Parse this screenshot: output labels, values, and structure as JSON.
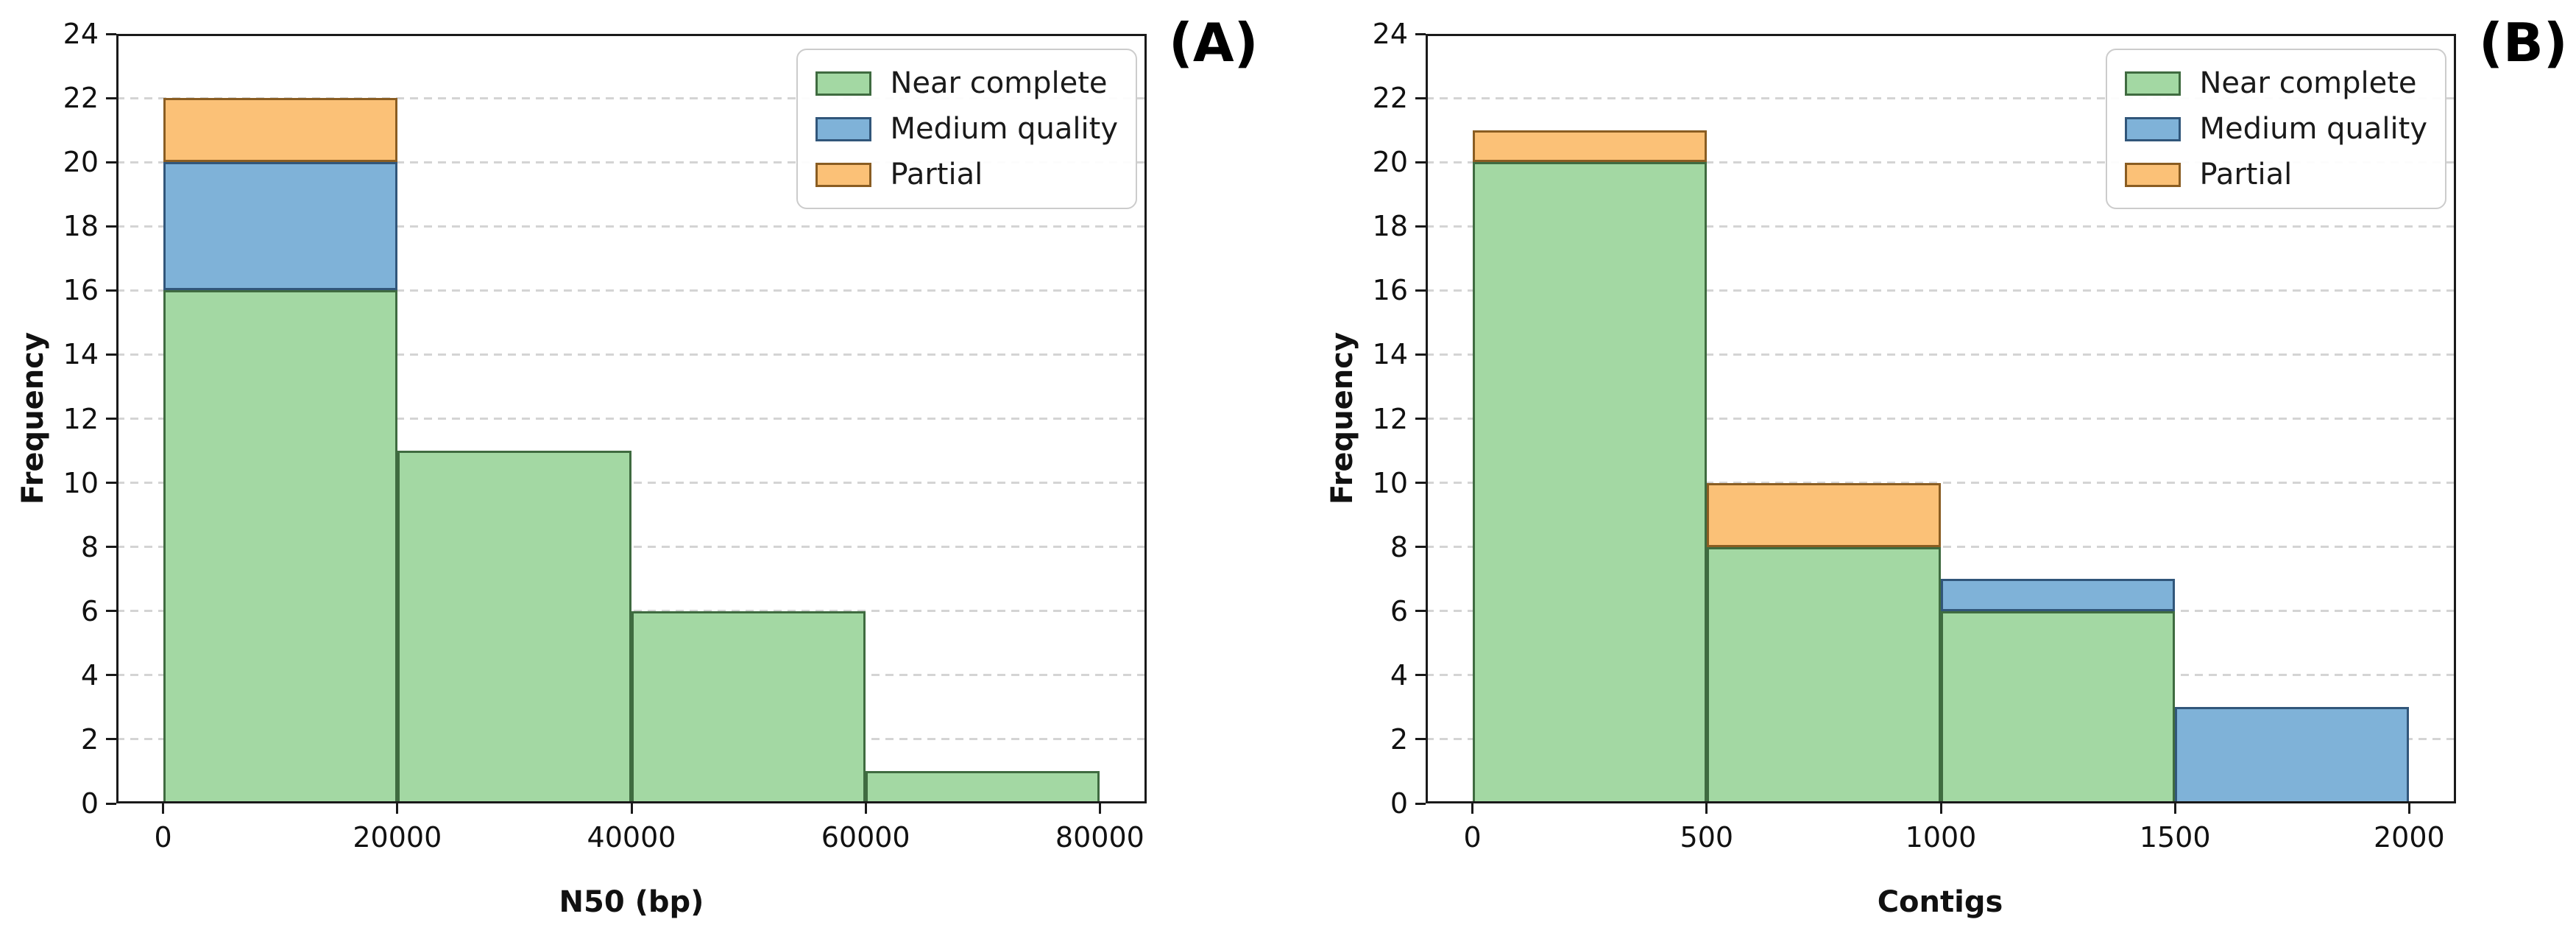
{
  "figure": {
    "background": "#ffffff"
  },
  "palette": {
    "series_fills": [
      "#a3d8a3",
      "#7fb2d8",
      "#fbc177"
    ],
    "series_edges": [
      "#3f6b40",
      "#31567a",
      "#8a5d22"
    ],
    "axis_color": "#1a1a1a",
    "grid_color": "#d4d4d4",
    "legend_border": "#cccccc"
  },
  "chart_data": [
    {
      "panel_label": "(A)",
      "type": "bar",
      "subtype": "stacked-histogram",
      "xlabel": "N50 (bp)",
      "ylabel": "Frequency",
      "bin_edges": [
        0,
        20000,
        40000,
        60000,
        80000
      ],
      "x_ticks": [
        0,
        20000,
        40000,
        60000,
        80000
      ],
      "y_ticks": [
        0,
        2,
        4,
        6,
        8,
        10,
        12,
        14,
        16,
        18,
        20,
        22,
        24
      ],
      "xlim": [
        -4000,
        84000
      ],
      "ylim": [
        0,
        24
      ],
      "grid": "horizontal-dashed",
      "legend_position": "upper-right",
      "series": [
        {
          "name": "Near complete",
          "values": [
            16,
            11,
            6,
            1
          ]
        },
        {
          "name": "Medium quality",
          "values": [
            4,
            0,
            0,
            0
          ]
        },
        {
          "name": "Partial",
          "values": [
            2,
            0,
            0,
            0
          ]
        }
      ]
    },
    {
      "panel_label": "(B)",
      "type": "bar",
      "subtype": "stacked-histogram",
      "xlabel": "Contigs",
      "ylabel": "Frequency",
      "bin_edges": [
        0,
        500,
        1000,
        1500,
        2000
      ],
      "x_ticks": [
        0,
        500,
        1000,
        1500,
        2000
      ],
      "y_ticks": [
        0,
        2,
        4,
        6,
        8,
        10,
        12,
        14,
        16,
        18,
        20,
        22,
        24
      ],
      "xlim": [
        -100,
        2100
      ],
      "ylim": [
        0,
        24
      ],
      "grid": "horizontal-dashed",
      "legend_position": "upper-right",
      "series": [
        {
          "name": "Near complete",
          "values": [
            20,
            8,
            6,
            0
          ]
        },
        {
          "name": "Medium quality",
          "values": [
            0,
            0,
            1,
            3
          ]
        },
        {
          "name": "Partial",
          "values": [
            1,
            2,
            0,
            0
          ]
        }
      ]
    }
  ]
}
